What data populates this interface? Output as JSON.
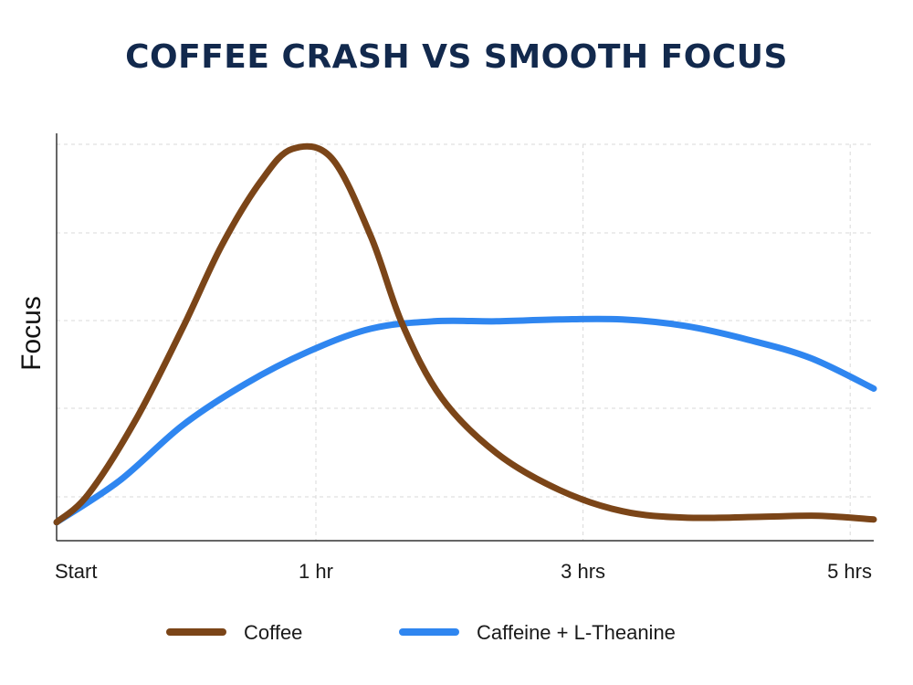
{
  "chart_data": {
    "type": "line",
    "title": "COFFEE CRASH VS SMOOTH FOCUS",
    "xlabel": "",
    "ylabel": "Focus",
    "xlim": [
      0,
      5.2
    ],
    "ylim": [
      0,
      4.3
    ],
    "x_ticks": [
      {
        "value": 0,
        "label": "Start"
      },
      {
        "value": 1.65,
        "label": "1 hr"
      },
      {
        "value": 3.35,
        "label": "3 hrs"
      },
      {
        "value": 5.05,
        "label": "5 hrs"
      }
    ],
    "grid": true,
    "legend_position": "bottom",
    "series": [
      {
        "name": "Coffee",
        "color": "#7b4518",
        "points": [
          [
            0,
            0.2
          ],
          [
            0.2,
            0.5
          ],
          [
            0.5,
            1.3
          ],
          [
            0.8,
            2.3
          ],
          [
            1.05,
            3.2
          ],
          [
            1.3,
            3.9
          ],
          [
            1.5,
            4.25
          ],
          [
            1.75,
            4.15
          ],
          [
            2.0,
            3.3
          ],
          [
            2.2,
            2.35
          ],
          [
            2.45,
            1.55
          ],
          [
            2.8,
            0.95
          ],
          [
            3.2,
            0.55
          ],
          [
            3.6,
            0.32
          ],
          [
            4.0,
            0.25
          ],
          [
            4.5,
            0.26
          ],
          [
            4.85,
            0.27
          ],
          [
            5.2,
            0.23
          ]
        ]
      },
      {
        "name": "Caffeine + L-Theanine",
        "color": "#2f86f0",
        "points": [
          [
            0,
            0.2
          ],
          [
            0.4,
            0.65
          ],
          [
            0.8,
            1.25
          ],
          [
            1.2,
            1.7
          ],
          [
            1.6,
            2.05
          ],
          [
            2.0,
            2.3
          ],
          [
            2.4,
            2.38
          ],
          [
            2.8,
            2.38
          ],
          [
            3.2,
            2.4
          ],
          [
            3.6,
            2.4
          ],
          [
            4.0,
            2.33
          ],
          [
            4.4,
            2.18
          ],
          [
            4.8,
            1.98
          ],
          [
            5.2,
            1.65
          ]
        ]
      }
    ]
  }
}
